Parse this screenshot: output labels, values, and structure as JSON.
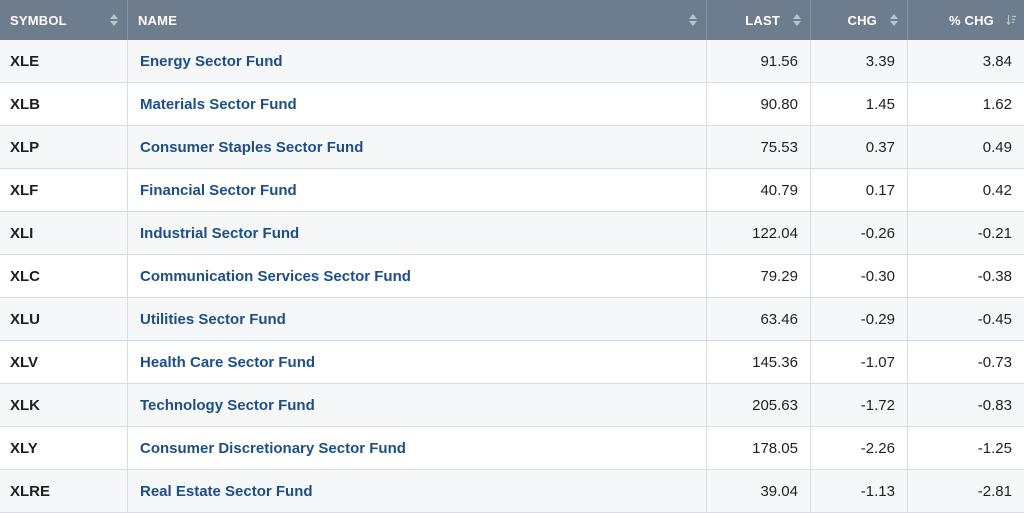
{
  "header": {
    "symbol": "SYMBOL",
    "name": "NAME",
    "last": "LAST",
    "chg": "CHG",
    "pct_chg": "% CHG"
  },
  "icons": {
    "sortable": "sort-both-icon",
    "sorted_desc": "sort-descending-icon"
  },
  "colors": {
    "header_bg": "#6d7d8e",
    "link": "#1c4f86",
    "row_alt": "#f5f7f9"
  },
  "rows": [
    {
      "symbol": "XLE",
      "name": "Energy Sector Fund",
      "last": "91.56",
      "chg": "3.39",
      "pct": "3.84"
    },
    {
      "symbol": "XLB",
      "name": "Materials Sector Fund",
      "last": "90.80",
      "chg": "1.45",
      "pct": "1.62"
    },
    {
      "symbol": "XLP",
      "name": "Consumer Staples Sector Fund",
      "last": "75.53",
      "chg": "0.37",
      "pct": "0.49"
    },
    {
      "symbol": "XLF",
      "name": "Financial Sector Fund",
      "last": "40.79",
      "chg": "0.17",
      "pct": "0.42"
    },
    {
      "symbol": "XLI",
      "name": "Industrial Sector Fund",
      "last": "122.04",
      "chg": "-0.26",
      "pct": "-0.21"
    },
    {
      "symbol": "XLC",
      "name": "Communication Services Sector Fund",
      "last": "79.29",
      "chg": "-0.30",
      "pct": "-0.38"
    },
    {
      "symbol": "XLU",
      "name": "Utilities Sector Fund",
      "last": "63.46",
      "chg": "-0.29",
      "pct": "-0.45"
    },
    {
      "symbol": "XLV",
      "name": "Health Care Sector Fund",
      "last": "145.36",
      "chg": "-1.07",
      "pct": "-0.73"
    },
    {
      "symbol": "XLK",
      "name": "Technology Sector Fund",
      "last": "205.63",
      "chg": "-1.72",
      "pct": "-0.83"
    },
    {
      "symbol": "XLY",
      "name": "Consumer Discretionary Sector Fund",
      "last": "178.05",
      "chg": "-2.26",
      "pct": "-1.25"
    },
    {
      "symbol": "XLRE",
      "name": "Real Estate Sector Fund",
      "last": "39.04",
      "chg": "-1.13",
      "pct": "-2.81"
    }
  ]
}
